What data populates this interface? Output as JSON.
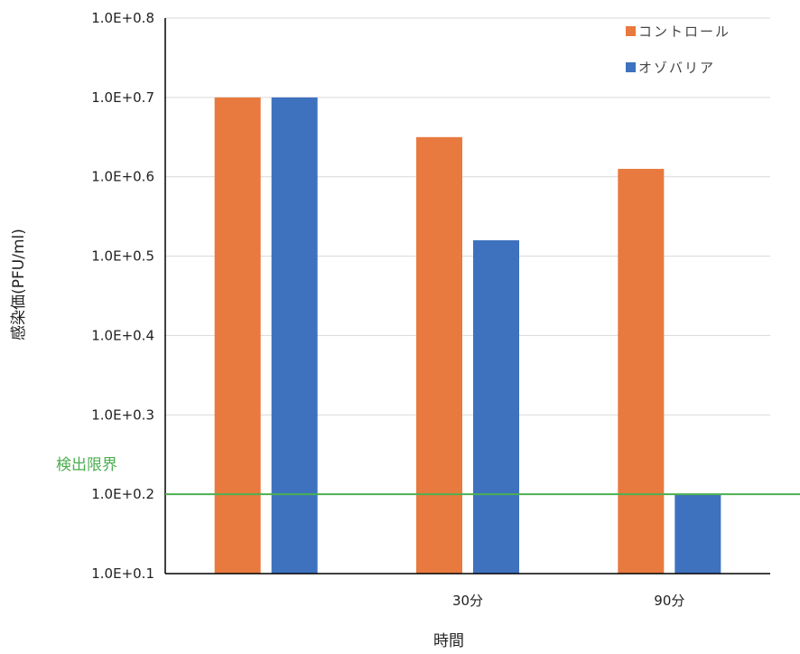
{
  "chart_data": {
    "type": "bar",
    "x_tick_labels": [
      "",
      "30分",
      "90分"
    ],
    "series": [
      {
        "name": "コントロール",
        "color": "#E8793F",
        "values": [
          0.7,
          0.65,
          0.61
        ]
      },
      {
        "name": "オゾバリア",
        "color": "#3E72BF",
        "values": [
          0.7,
          0.52,
          0.2
        ]
      }
    ],
    "xlabel": "時間",
    "ylabel": "感染価(PFU/ml)",
    "ylim": [
      0.1,
      0.8
    ],
    "y_tick_values": [
      0.1,
      0.2,
      0.3,
      0.4,
      0.5,
      0.6,
      0.7,
      0.8
    ],
    "y_tick_labels": [
      "1.0E+0.1",
      "1.0E+0.2",
      "1.0E+0.3",
      "1.0E+0.4",
      "1.0E+0.5",
      "1.0E+0.6",
      "1.0E+0.7",
      "1.0E+0.8"
    ],
    "grid": true,
    "legend_position": "top-right",
    "reference_line": {
      "label": "検出限界",
      "value": 0.2,
      "color": "#4CAF50"
    }
  }
}
